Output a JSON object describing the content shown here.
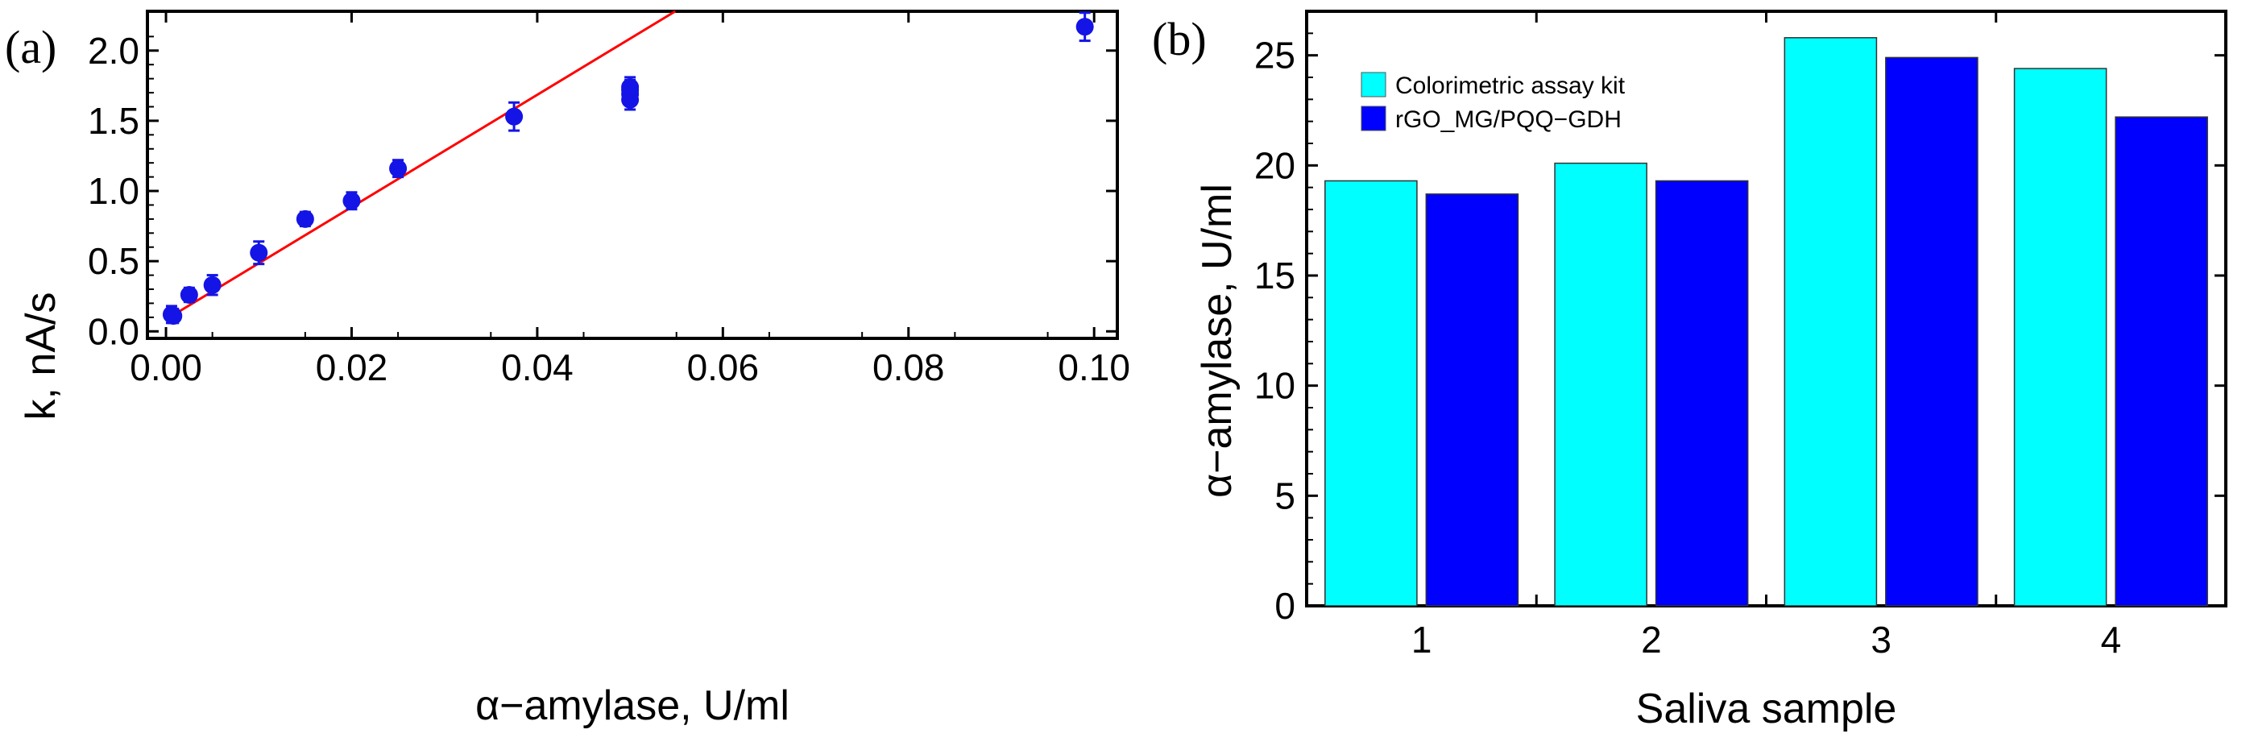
{
  "chart_data": [
    {
      "panel_label": "(a)",
      "type": "scatter",
      "title": "",
      "xlabel": "α−amylase, U/ml",
      "ylabel": "k, nA/s",
      "xlim": [
        -0.002,
        0.1025
      ],
      "ylim": [
        -0.05,
        2.28
      ],
      "xticks": [
        "0.00",
        "0.02",
        "0.04",
        "0.06",
        "0.08",
        "0.10"
      ],
      "xtick_values": [
        0.0,
        0.02,
        0.04,
        0.06,
        0.08,
        0.1
      ],
      "yticks": [
        "0.0",
        "0.5",
        "1.0",
        "1.5",
        "2.0"
      ],
      "ytick_values": [
        0.0,
        0.5,
        1.0,
        1.5,
        2.0
      ],
      "grid": false,
      "points": [
        {
          "x": 0.0006,
          "y": 0.12,
          "err": 0.06
        },
        {
          "x": 0.0008,
          "y": 0.11,
          "err": 0.05
        },
        {
          "x": 0.0025,
          "y": 0.26,
          "err": 0.05
        },
        {
          "x": 0.005,
          "y": 0.33,
          "err": 0.07
        },
        {
          "x": 0.01,
          "y": 0.56,
          "err": 0.08
        },
        {
          "x": 0.015,
          "y": 0.8,
          "err": 0.05
        },
        {
          "x": 0.02,
          "y": 0.93,
          "err": 0.06
        },
        {
          "x": 0.025,
          "y": 1.16,
          "err": 0.06
        },
        {
          "x": 0.0375,
          "y": 1.53,
          "err": 0.1
        },
        {
          "x": 0.05,
          "y": 1.65,
          "err": 0.07
        },
        {
          "x": 0.05,
          "y": 1.69,
          "err": 0.07
        },
        {
          "x": 0.05,
          "y": 1.72,
          "err": 0.07
        },
        {
          "x": 0.05,
          "y": 1.74,
          "err": 0.07
        },
        {
          "x": 0.099,
          "y": 2.17,
          "err": 0.1
        }
      ],
      "fit_line": {
        "intercept": 0.085,
        "slope": 40.0,
        "color": "#ff0000"
      },
      "marker_color": "#1414e6"
    },
    {
      "panel_label": "(b)",
      "type": "bar",
      "title": "",
      "xlabel": "Saliva sample",
      "ylabel": "α−amylase, U/ml",
      "categories": [
        "1",
        "2",
        "3",
        "4"
      ],
      "ylim": [
        0,
        27
      ],
      "yticks": [
        "0",
        "5",
        "10",
        "15",
        "20",
        "25"
      ],
      "ytick_values": [
        0,
        5,
        10,
        15,
        20,
        25
      ],
      "grid": false,
      "legend_position": "top-left",
      "series": [
        {
          "name": "Colorimetric assay kit",
          "color": "#00ffff",
          "values": [
            19.3,
            20.1,
            25.8,
            24.4
          ]
        },
        {
          "name": "rGO_MG/PQQ−GDH",
          "color": "#0000ff",
          "values": [
            18.7,
            19.3,
            24.9,
            22.2
          ]
        }
      ]
    }
  ]
}
